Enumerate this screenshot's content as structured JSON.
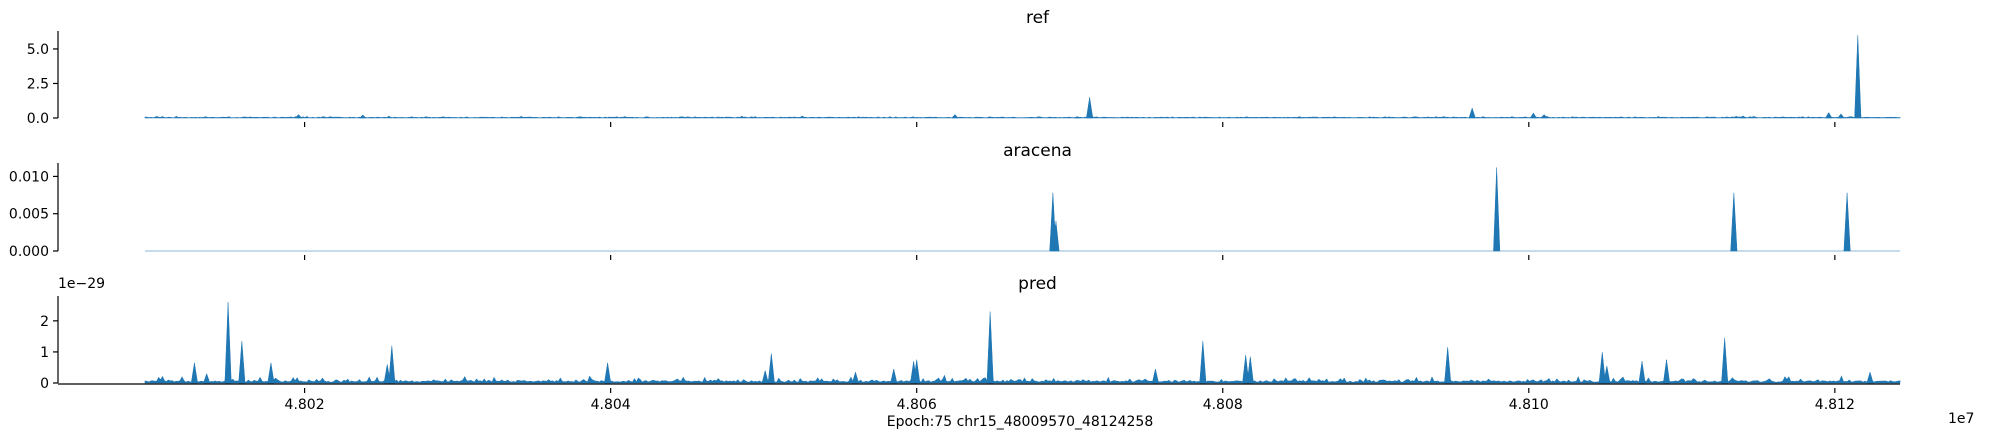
{
  "figure": {
    "xlabel": "Epoch:75 chr15_48009570_48124258",
    "x_offset_label": "1e7"
  },
  "chart_data": [
    {
      "type": "area",
      "title": "ref",
      "xlim": [
        48009570,
        48124258
      ],
      "ylim": [
        0,
        6.3
      ],
      "y_ticks": [
        0.0,
        2.5,
        5.0
      ],
      "y_tick_labels": [
        "0.0",
        "2.5",
        "5.0"
      ],
      "x_ticks": [
        48020000,
        48040000,
        48060000,
        48080000,
        48100000,
        48120000
      ],
      "x_tick_labels_visible": false,
      "baseline": 0.04,
      "noise_amplitude": 0.08,
      "peaks": [
        {
          "x": 48019600,
          "y": 0.25
        },
        {
          "x": 48023800,
          "y": 0.22
        },
        {
          "x": 48038000,
          "y": 0.1
        },
        {
          "x": 48062500,
          "y": 0.25
        },
        {
          "x": 48070500,
          "y": 0.1
        },
        {
          "x": 48071300,
          "y": 1.5
        },
        {
          "x": 48085000,
          "y": 0.1
        },
        {
          "x": 48096300,
          "y": 0.72
        },
        {
          "x": 48100300,
          "y": 0.35
        },
        {
          "x": 48101000,
          "y": 0.25
        },
        {
          "x": 48114000,
          "y": 0.15
        },
        {
          "x": 48119600,
          "y": 0.4
        },
        {
          "x": 48120400,
          "y": 0.3
        },
        {
          "x": 48121500,
          "y": 6.0
        }
      ],
      "fill": "#1f77b4"
    },
    {
      "type": "area",
      "title": "aracena",
      "xlim": [
        48009570,
        48124258
      ],
      "ylim": [
        0,
        0.0118
      ],
      "y_ticks": [
        0.0,
        0.005,
        0.01
      ],
      "y_tick_labels": [
        "0.000",
        "0.005",
        "0.010"
      ],
      "x_ticks": [
        48020000,
        48040000,
        48060000,
        48080000,
        48100000,
        48120000
      ],
      "x_tick_labels_visible": false,
      "baseline": 0,
      "noise_amplitude": 0,
      "peaks": [
        {
          "x": 48068900,
          "y": 0.0078
        },
        {
          "x": 48069100,
          "y": 0.004
        },
        {
          "x": 48097900,
          "y": 0.0112
        },
        {
          "x": 48113400,
          "y": 0.0078
        },
        {
          "x": 48120800,
          "y": 0.0078
        }
      ],
      "fill": "#1f77b4"
    },
    {
      "type": "area",
      "title": "pred",
      "xlim": [
        48009570,
        48124258
      ],
      "ylim": [
        0,
        2.8e-29
      ],
      "y_ticks": [
        0,
        1e-29,
        2e-29
      ],
      "y_tick_labels": [
        "0",
        "1",
        "2"
      ],
      "offset_text": "1e−29",
      "x_ticks": [
        48020000,
        48040000,
        48060000,
        48080000,
        48100000,
        48120000
      ],
      "x_tick_labels": [
        "4.802",
        "4.804",
        "4.806",
        "4.808",
        "4.810",
        "4.812"
      ],
      "x_tick_labels_visible": true,
      "baseline": 5e-31,
      "noise_amplitude": 1.8e-30,
      "peaks": [
        {
          "x": 48012800,
          "y": 6.5e-30
        },
        {
          "x": 48013600,
          "y": 3e-30
        },
        {
          "x": 48015000,
          "y": 2.6e-29
        },
        {
          "x": 48015900,
          "y": 1.35e-29
        },
        {
          "x": 48017800,
          "y": 6.5e-30
        },
        {
          "x": 48025700,
          "y": 1.2e-29
        },
        {
          "x": 48025400,
          "y": 6e-30
        },
        {
          "x": 48039800,
          "y": 6.5e-30
        },
        {
          "x": 48050500,
          "y": 9.5e-30
        },
        {
          "x": 48050100,
          "y": 4e-30
        },
        {
          "x": 48056000,
          "y": 3.5e-30
        },
        {
          "x": 48058500,
          "y": 4.5e-30
        },
        {
          "x": 48059800,
          "y": 7e-30
        },
        {
          "x": 48060000,
          "y": 7.5e-30
        },
        {
          "x": 48064800,
          "y": 2.3e-29
        },
        {
          "x": 48075600,
          "y": 4.5e-30
        },
        {
          "x": 48078700,
          "y": 1.35e-29
        },
        {
          "x": 48081500,
          "y": 9e-30
        },
        {
          "x": 48081800,
          "y": 8.5e-30
        },
        {
          "x": 48094700,
          "y": 1.15e-29
        },
        {
          "x": 48104800,
          "y": 1e-29
        },
        {
          "x": 48105100,
          "y": 5.5e-30
        },
        {
          "x": 48107400,
          "y": 7e-30
        },
        {
          "x": 48109000,
          "y": 7.5e-30
        },
        {
          "x": 48112800,
          "y": 1.45e-29
        },
        {
          "x": 48122300,
          "y": 3.5e-30
        }
      ],
      "fill": "#1f77b4"
    }
  ]
}
